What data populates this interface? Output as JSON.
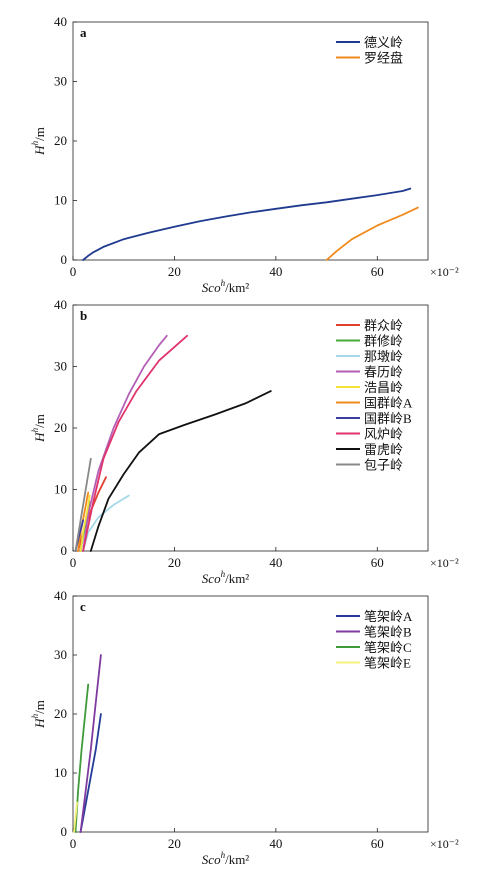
{
  "chart_data": [
    {
      "type": "line",
      "panel_label": "a",
      "xlabel": "Sco",
      "xlabel_sup": "h",
      "xlabel_unit": "/km²",
      "ylabel": "H",
      "ylabel_sup": "h",
      "ylabel_unit": "/m",
      "x_multiplier": "×10⁻²",
      "xlim": [
        0,
        70
      ],
      "ylim": [
        0,
        40
      ],
      "xticks": [
        "0",
        "20",
        "40",
        "60"
      ],
      "yticks": [
        "0",
        "10",
        "20",
        "30",
        "40"
      ],
      "legend_position": "top-right",
      "series": [
        {
          "name": "德义岭",
          "color": "#1f3a8f",
          "points": [
            [
              2,
              0
            ],
            [
              3,
              0.7
            ],
            [
              4,
              1.3
            ],
            [
              6,
              2.2
            ],
            [
              10,
              3.5
            ],
            [
              15,
              4.6
            ],
            [
              20,
              5.6
            ],
            [
              25,
              6.5
            ],
            [
              30,
              7.3
            ],
            [
              35,
              8.0
            ],
            [
              40,
              8.6
            ],
            [
              45,
              9.2
            ],
            [
              50,
              9.7
            ],
            [
              55,
              10.3
            ],
            [
              60,
              10.9
            ],
            [
              65,
              11.6
            ],
            [
              66.5,
              12
            ]
          ]
        },
        {
          "name": "罗经盘",
          "color": "#f08a1c",
          "points": [
            [
              50,
              0
            ],
            [
              52,
              1.5
            ],
            [
              55,
              3.5
            ],
            [
              60,
              5.8
            ],
            [
              65,
              7.6
            ],
            [
              68,
              8.8
            ]
          ]
        }
      ]
    },
    {
      "type": "line",
      "panel_label": "b",
      "xlabel": "Sco",
      "xlabel_sup": "h",
      "xlabel_unit": "/km²",
      "ylabel": "H",
      "ylabel_sup": "h",
      "ylabel_unit": "/m",
      "x_multiplier": "×10⁻²",
      "xlim": [
        0,
        70
      ],
      "ylim": [
        0,
        40
      ],
      "xticks": [
        "0",
        "20",
        "40",
        "60"
      ],
      "yticks": [
        "0",
        "10",
        "20",
        "30",
        "40"
      ],
      "legend_position": "top-right",
      "series": [
        {
          "name": "群众岭",
          "color": "#e0412e",
          "points": [
            [
              1,
              0
            ],
            [
              2,
              3
            ],
            [
              3.5,
              6.5
            ],
            [
              5,
              9.5
            ],
            [
              6.5,
              12
            ]
          ]
        },
        {
          "name": "群修岭",
          "color": "#4aa83a",
          "points": [
            [
              1.5,
              0
            ],
            [
              2,
              2.5
            ],
            [
              2.7,
              5.5
            ],
            [
              3.2,
              8
            ]
          ]
        },
        {
          "name": "那墩岭",
          "color": "#a6d8ea",
          "points": [
            [
              2,
              0
            ],
            [
              3,
              3
            ],
            [
              5,
              5.5
            ],
            [
              8,
              7.5
            ],
            [
              11,
              9
            ]
          ]
        },
        {
          "name": "春历岭",
          "color": "#b35fb5",
          "points": [
            [
              2,
              0
            ],
            [
              3,
              6
            ],
            [
              5,
              13
            ],
            [
              8,
              20
            ],
            [
              11,
              25.5
            ],
            [
              14,
              30
            ],
            [
              17,
              33.5
            ],
            [
              18.5,
              35
            ]
          ]
        },
        {
          "name": "浩昌岭",
          "color": "#f2e23a",
          "points": [
            [
              1.5,
              0
            ],
            [
              2,
              3
            ],
            [
              2.8,
              6.5
            ],
            [
              3.3,
              9
            ]
          ]
        },
        {
          "name": "国群岭A",
          "color": "#f28a1e",
          "points": [
            [
              1,
              0
            ],
            [
              1.5,
              3
            ],
            [
              2.3,
              6.5
            ],
            [
              3,
              9.5
            ]
          ]
        },
        {
          "name": "国群岭B",
          "color": "#3a3ea0",
          "points": [
            [
              0.5,
              0
            ],
            [
              1.2,
              2.5
            ],
            [
              2,
              5
            ]
          ]
        },
        {
          "name": "风炉岭",
          "color": "#e0336b",
          "points": [
            [
              2,
              0
            ],
            [
              4,
              8
            ],
            [
              6,
              15
            ],
            [
              9,
              21
            ],
            [
              12.5,
              26
            ],
            [
              17,
              31
            ],
            [
              22.5,
              35
            ]
          ]
        },
        {
          "name": "雷虎岭",
          "color": "#111111",
          "points": [
            [
              3.5,
              0
            ],
            [
              5,
              4
            ],
            [
              7,
              8.5
            ],
            [
              10,
              12.5
            ],
            [
              13,
              16
            ],
            [
              17,
              19
            ],
            [
              22,
              20.5
            ],
            [
              28,
              22.2
            ],
            [
              34,
              24
            ],
            [
              39,
              26
            ]
          ]
        },
        {
          "name": "包子岭",
          "color": "#888888",
          "points": [
            [
              0.5,
              0
            ],
            [
              1.5,
              5
            ],
            [
              2.5,
              10
            ],
            [
              3.5,
              15
            ]
          ]
        }
      ]
    },
    {
      "type": "line",
      "panel_label": "c",
      "xlabel": "Sco",
      "xlabel_sup": "h",
      "xlabel_unit": "/km²",
      "ylabel": "H",
      "ylabel_sup": "h",
      "ylabel_unit": "/m",
      "x_multiplier": "×10⁻²",
      "xlim": [
        0,
        70
      ],
      "ylim": [
        0,
        40
      ],
      "xticks": [
        "0",
        "20",
        "40",
        "60"
      ],
      "yticks": [
        "0",
        "10",
        "20",
        "30",
        "40"
      ],
      "legend_position": "top-right",
      "series": [
        {
          "name": "笔架岭A",
          "color": "#243c98",
          "points": [
            [
              1.5,
              0
            ],
            [
              3,
              7
            ],
            [
              4.5,
              14
            ],
            [
              5.5,
              20
            ]
          ]
        },
        {
          "name": "笔架岭B",
          "color": "#7e3aa0",
          "points": [
            [
              1.5,
              0
            ],
            [
              2.5,
              7
            ],
            [
              3.5,
              14
            ],
            [
              4.5,
              22
            ],
            [
              5.5,
              30
            ]
          ]
        },
        {
          "name": "笔架岭C",
          "color": "#3f9a3a",
          "points": [
            [
              0.5,
              0
            ],
            [
              1,
              7
            ],
            [
              1.7,
              14
            ],
            [
              2.4,
              20
            ],
            [
              3,
              25
            ]
          ]
        },
        {
          "name": "笔架岭E",
          "color": "#f4f07a",
          "points": [
            [
              0.2,
              0
            ],
            [
              0.5,
              2.5
            ],
            [
              0.8,
              5
            ]
          ]
        }
      ]
    }
  ]
}
